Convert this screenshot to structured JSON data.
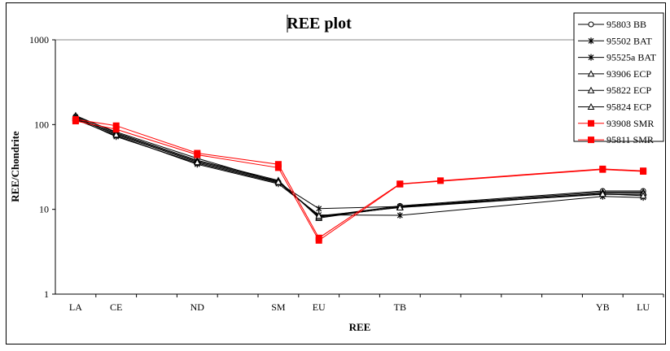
{
  "chart_data": {
    "type": "line",
    "title": "REE plot",
    "xlabel": "REE",
    "ylabel": "REE/Chondrite",
    "yscale": "log",
    "ylim": [
      1,
      1000
    ],
    "yticks": [
      "1",
      "10",
      "100",
      "1000"
    ],
    "grid": false,
    "legend_position": "top-right",
    "categories": [
      "LA",
      "CE",
      "",
      "ND",
      "",
      "SM",
      "EU",
      "",
      "TB",
      "",
      "",
      "",
      "",
      "YB",
      "LU"
    ],
    "series": [
      {
        "name": "95803 BB",
        "marker": "circle",
        "color": "#000000",
        "values": [
          125,
          82,
          null,
          40,
          null,
          21,
          8.2,
          null,
          11,
          null,
          null,
          null,
          null,
          16.5,
          16.5
        ]
      },
      {
        "name": "95502 BAT",
        "marker": "star",
        "color": "#000000",
        "values": [
          118,
          72,
          null,
          35,
          null,
          20.5,
          10.2,
          null,
          10.8,
          null,
          null,
          null,
          null,
          15,
          15
        ]
      },
      {
        "name": "95525a BAT",
        "marker": "star",
        "color": "#000000",
        "values": [
          115,
          74,
          null,
          34,
          null,
          20,
          8.6,
          null,
          8.5,
          null,
          null,
          null,
          null,
          14.2,
          13.8
        ]
      },
      {
        "name": "93906 ECP",
        "marker": "triangle",
        "color": "#000000",
        "values": [
          128,
          80,
          null,
          38,
          null,
          22,
          7.9,
          null,
          10.8,
          null,
          null,
          null,
          null,
          16,
          16
        ]
      },
      {
        "name": "95822 ECP",
        "marker": "triangle",
        "color": "#000000",
        "values": [
          122,
          78,
          null,
          37,
          null,
          21.5,
          8.1,
          null,
          10.6,
          null,
          null,
          null,
          null,
          15.5,
          15.5
        ]
      },
      {
        "name": "95824 ECP",
        "marker": "triangle",
        "color": "#000000",
        "values": [
          120,
          76,
          null,
          36,
          null,
          21,
          8.4,
          null,
          10.5,
          null,
          null,
          null,
          null,
          15.2,
          14.5
        ]
      },
      {
        "name": "93908 SMR",
        "marker": "square",
        "color": "#ff0000",
        "values": [
          115,
          97,
          null,
          46,
          null,
          34,
          4.6,
          null,
          20,
          21.8,
          null,
          null,
          null,
          30,
          28.5
        ]
      },
      {
        "name": "95811 SMR",
        "marker": "square",
        "color": "#ff0000",
        "values": [
          110,
          88,
          null,
          44,
          null,
          31,
          4.3,
          null,
          19.8,
          null,
          null,
          null,
          null,
          29.5,
          28
        ]
      }
    ]
  }
}
